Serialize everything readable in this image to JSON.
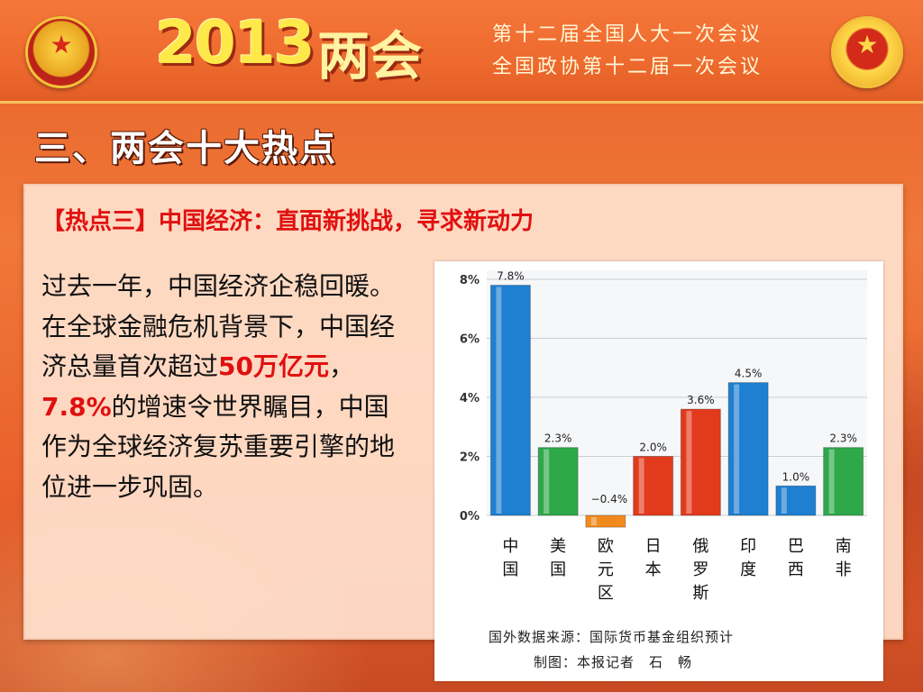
{
  "header": {
    "year": "2013",
    "title_word": "两会",
    "line1": "第十二届全国人大一次会议",
    "line2": "全国政协第十二届一次会议"
  },
  "section_title": "三、两会十大热点",
  "hot_title": "【热点三】中国经济：直面新挑战，寻求新动力",
  "body": {
    "part1": "过去一年，中国经济企稳回暖。在全球金融危机背景下，中国经济总量首次超过",
    "highlight1": "50万亿元",
    "part2": "，",
    "highlight2": "7.8%",
    "part3": "的增速令世界瞩目，中国作为全球经济复苏重要引擎的地位进一步巩固。"
  },
  "chart_data": {
    "type": "bar",
    "categories": [
      "中国",
      "美国",
      "欧元区",
      "日本",
      "俄罗斯",
      "印度",
      "巴西",
      "南非"
    ],
    "values": [
      7.8,
      2.3,
      -0.4,
      2.0,
      3.6,
      4.5,
      1.0,
      2.3
    ],
    "data_labels": [
      "7.8%",
      "2.3%",
      "−0.4%",
      "2.0%",
      "3.6%",
      "4.5%",
      "1.0%",
      "2.3%"
    ],
    "colors": [
      "#1f7fd0",
      "#2fa84a",
      "#f08a1e",
      "#e23a1c",
      "#e23a1c",
      "#1f7fd0",
      "#1f7fd0",
      "#2fa84a"
    ],
    "yticks": [
      "0%",
      "2%",
      "4%",
      "6%",
      "8%"
    ],
    "ylim": [
      -0.4,
      8
    ],
    "grid": true,
    "source": "国外数据来源：国际货币基金组织预计",
    "credit": "制图：本报记者　石　畅"
  }
}
